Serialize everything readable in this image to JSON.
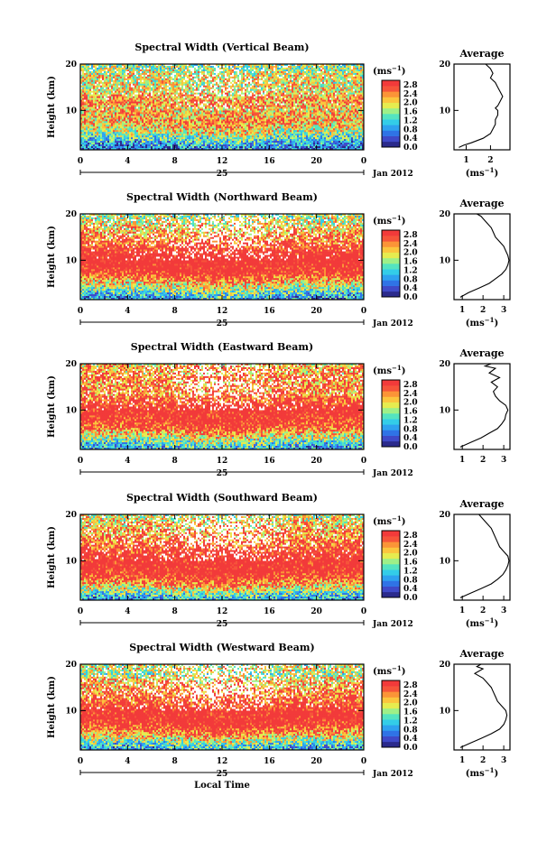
{
  "height_label": "Height (km)",
  "local_time_label": "Local Time",
  "average_label": "Average",
  "unit_label": "(ms⁻¹)",
  "unit_base": "(ms",
  "unit_sup": "−1",
  "day_label": "25",
  "date_label": "Jan 2012",
  "colorbar_ticks": [
    "0.0",
    "0.4",
    "0.8",
    "1.2",
    "1.6",
    "2.0",
    "2.4",
    "2.8"
  ],
  "time_ticks": [
    "0",
    "4",
    "8",
    "12",
    "16",
    "20",
    "0"
  ],
  "height_ticks": [
    "20",
    "10"
  ],
  "colors": {
    "colormap": [
      "#2b2a8c",
      "#3f49c8",
      "#2f73e6",
      "#2ea2ef",
      "#33cde8",
      "#54e4c0",
      "#9ef088",
      "#e6ec4f",
      "#fbc53d",
      "#fb9437",
      "#f6543a",
      "#f23a3a"
    ],
    "missing": "#ffffff",
    "line": "#000000"
  },
  "chart_data": [
    {
      "type": "heatmap",
      "title": "Spectral Width (Vertical Beam)",
      "xlabel": "",
      "ylabel": "Height (km)",
      "xlim": [
        0,
        24
      ],
      "ylim": [
        1.5,
        20
      ],
      "clim": [
        0.0,
        3.0
      ],
      "profile": [
        [
          2,
          0.6
        ],
        [
          3,
          0.9
        ],
        [
          4,
          1.2
        ],
        [
          5,
          1.6
        ],
        [
          6,
          1.9
        ],
        [
          7,
          2.1
        ],
        [
          8,
          2.2
        ],
        [
          9,
          2.2
        ],
        [
          10,
          2.1
        ],
        [
          11,
          2.3
        ],
        [
          12,
          2.4
        ],
        [
          13,
          2.3
        ],
        [
          14,
          2.0
        ],
        [
          15,
          2.0
        ],
        [
          16,
          1.9
        ],
        [
          17,
          2.0
        ],
        [
          18,
          1.9
        ],
        [
          19,
          1.7
        ],
        [
          20,
          1.6
        ]
      ],
      "white_fraction": 0.12,
      "average": {
        "type": "line",
        "title": "Average",
        "xlabel": "(ms⁻¹)",
        "xlim": [
          0.5,
          2.8
        ],
        "ylim": [
          1.5,
          20
        ],
        "xticks": [
          "1",
          "2"
        ],
        "yticks": [
          "20",
          "10"
        ],
        "x": [
          0.7,
          0.9,
          1.2,
          1.7,
          2.0,
          2.1,
          2.2,
          2.2,
          2.3,
          2.3,
          2.2,
          2.3,
          2.4,
          2.5,
          2.4,
          2.3,
          2.2,
          2.0,
          2.1,
          2.0,
          1.8
        ],
        "y": [
          2,
          2.5,
          3,
          4,
          5,
          6,
          7,
          8,
          9,
          10,
          10.5,
          11,
          12,
          13,
          14,
          15,
          16,
          17,
          18,
          19,
          20
        ]
      }
    },
    {
      "type": "heatmap",
      "title": "Spectral Width (Northward Beam)",
      "xlabel": "",
      "ylabel": "Height (km)",
      "xlim": [
        0,
        24
      ],
      "ylim": [
        1.5,
        20
      ],
      "clim": [
        0.0,
        3.0
      ],
      "profile": [
        [
          2,
          0.8
        ],
        [
          3,
          1.2
        ],
        [
          4,
          1.6
        ],
        [
          5,
          2.0
        ],
        [
          6,
          2.4
        ],
        [
          7,
          2.8
        ],
        [
          8,
          3.1
        ],
        [
          9,
          3.2
        ],
        [
          10,
          3.3
        ],
        [
          11,
          3.2
        ],
        [
          12,
          3.0
        ],
        [
          13,
          2.8
        ],
        [
          14,
          2.6
        ],
        [
          15,
          2.4
        ],
        [
          16,
          2.3
        ],
        [
          17,
          2.1
        ],
        [
          18,
          1.9
        ],
        [
          19,
          1.8
        ],
        [
          20,
          1.6
        ]
      ],
      "white_fraction": 0.2,
      "average": {
        "type": "line",
        "title": "Average",
        "xlabel": "(ms⁻¹)",
        "xlim": [
          0.6,
          3.3
        ],
        "ylim": [
          1.5,
          20
        ],
        "xticks": [
          "1",
          "2",
          "3"
        ],
        "yticks": [
          "20",
          "10"
        ],
        "x": [
          0.9,
          1.3,
          1.8,
          2.3,
          2.6,
          2.9,
          3.1,
          3.2,
          3.25,
          3.2,
          3.1,
          3.0,
          2.8,
          2.6,
          2.5,
          2.4,
          2.2,
          2.0,
          1.9,
          1.7
        ],
        "y": [
          2,
          3,
          4,
          5,
          6,
          7,
          8,
          9,
          10,
          11,
          12,
          13,
          14,
          15,
          16,
          17,
          18,
          19,
          19.5,
          20
        ]
      }
    },
    {
      "type": "heatmap",
      "title": "Spectral Width (Eastward Beam)",
      "xlabel": "",
      "ylabel": "Height (km)",
      "xlim": [
        0,
        24
      ],
      "ylim": [
        1.5,
        20
      ],
      "clim": [
        0.0,
        3.0
      ],
      "profile": [
        [
          2,
          0.9
        ],
        [
          3,
          1.3
        ],
        [
          4,
          1.7
        ],
        [
          5,
          2.1
        ],
        [
          6,
          2.5
        ],
        [
          7,
          2.8
        ],
        [
          8,
          3.0
        ],
        [
          9,
          3.1
        ],
        [
          10,
          3.2
        ],
        [
          11,
          3.0
        ],
        [
          12,
          2.7
        ],
        [
          13,
          2.5
        ],
        [
          14,
          2.4
        ],
        [
          15,
          2.5
        ],
        [
          16,
          2.3
        ],
        [
          17,
          2.6
        ],
        [
          18,
          2.2
        ],
        [
          19,
          2.4
        ],
        [
          20,
          2.0
        ]
      ],
      "white_fraction": 0.2,
      "average": {
        "type": "line",
        "title": "Average",
        "xlabel": "",
        "xlim": [
          0.6,
          3.3
        ],
        "ylim": [
          1.5,
          20
        ],
        "xticks": [
          "1",
          "2",
          "3"
        ],
        "yticks": [
          "20",
          "10"
        ],
        "x": [
          0.9,
          1.4,
          1.9,
          2.3,
          2.7,
          2.9,
          3.05,
          3.1,
          3.2,
          3.1,
          2.8,
          2.6,
          2.5,
          2.7,
          2.4,
          2.8,
          2.3,
          2.6,
          2.1,
          2.4
        ],
        "y": [
          2,
          3,
          4,
          5,
          6,
          7,
          8,
          9,
          10,
          11,
          12,
          13,
          14,
          15,
          16,
          17,
          18,
          19,
          19.5,
          20
        ]
      }
    },
    {
      "type": "heatmap",
      "title": "Spectral Width (Southward Beam)",
      "xlabel": "",
      "ylabel": "Height (km)",
      "xlim": [
        0,
        24
      ],
      "ylim": [
        1.5,
        20
      ],
      "clim": [
        0.0,
        3.0
      ],
      "profile": [
        [
          2,
          0.9
        ],
        [
          3,
          1.3
        ],
        [
          4,
          1.8
        ],
        [
          5,
          2.2
        ],
        [
          6,
          2.6
        ],
        [
          7,
          2.9
        ],
        [
          8,
          3.1
        ],
        [
          9,
          3.2
        ],
        [
          10,
          3.2
        ],
        [
          11,
          3.1
        ],
        [
          12,
          2.9
        ],
        [
          13,
          2.7
        ],
        [
          14,
          2.6
        ],
        [
          15,
          2.4
        ],
        [
          16,
          2.3
        ],
        [
          17,
          2.2
        ],
        [
          18,
          2.1
        ],
        [
          19,
          1.9
        ],
        [
          20,
          1.7
        ]
      ],
      "white_fraction": 0.22,
      "average": {
        "type": "line",
        "title": "Average",
        "xlabel": "(ms⁻¹)",
        "xlim": [
          0.6,
          3.3
        ],
        "ylim": [
          1.5,
          20
        ],
        "xticks": [
          "1",
          "2",
          "3"
        ],
        "yticks": [
          "20",
          "10"
        ],
        "x": [
          0.9,
          1.4,
          1.9,
          2.4,
          2.7,
          2.95,
          3.1,
          3.2,
          3.25,
          3.2,
          3.0,
          2.8,
          2.7,
          2.6,
          2.5,
          2.4,
          2.2,
          2.0,
          1.9,
          1.8
        ],
        "y": [
          2,
          3,
          4,
          5,
          6,
          7,
          8,
          9,
          10,
          11,
          12,
          13,
          14,
          15,
          16,
          17,
          18,
          19,
          19.5,
          20
        ]
      }
    },
    {
      "type": "heatmap",
      "title": "Spectral Width (Westward Beam)",
      "xlabel": "Local Time",
      "ylabel": "Height (km)",
      "xlim": [
        0,
        24
      ],
      "ylim": [
        1.5,
        20
      ],
      "clim": [
        0.0,
        3.0
      ],
      "profile": [
        [
          2,
          0.9
        ],
        [
          3,
          1.3
        ],
        [
          4,
          1.8
        ],
        [
          5,
          2.2
        ],
        [
          6,
          2.6
        ],
        [
          7,
          2.9
        ],
        [
          8,
          3.1
        ],
        [
          9,
          3.2
        ],
        [
          10,
          3.1
        ],
        [
          11,
          2.9
        ],
        [
          12,
          2.7
        ],
        [
          13,
          2.6
        ],
        [
          14,
          2.5
        ],
        [
          15,
          2.3
        ],
        [
          16,
          2.2
        ],
        [
          17,
          2.0
        ],
        [
          18,
          1.6
        ],
        [
          19,
          2.0
        ],
        [
          20,
          1.7
        ]
      ],
      "white_fraction": 0.24,
      "average": {
        "type": "line",
        "title": "Average",
        "xlabel": "(ms⁻¹)",
        "xlim": [
          0.6,
          3.3
        ],
        "ylim": [
          1.5,
          20
        ],
        "xticks": [
          "1",
          "2",
          "3"
        ],
        "yticks": [
          "20",
          "10"
        ],
        "x": [
          0.9,
          1.4,
          1.9,
          2.4,
          2.8,
          3.0,
          3.1,
          3.15,
          3.1,
          2.9,
          2.7,
          2.6,
          2.5,
          2.4,
          2.2,
          2.0,
          1.6,
          2.0,
          1.7,
          1.9
        ],
        "y": [
          2,
          3,
          4,
          5,
          6,
          7,
          8,
          9,
          10,
          11,
          12,
          13,
          14,
          15,
          16,
          17,
          18,
          19,
          19.5,
          20
        ]
      }
    }
  ]
}
